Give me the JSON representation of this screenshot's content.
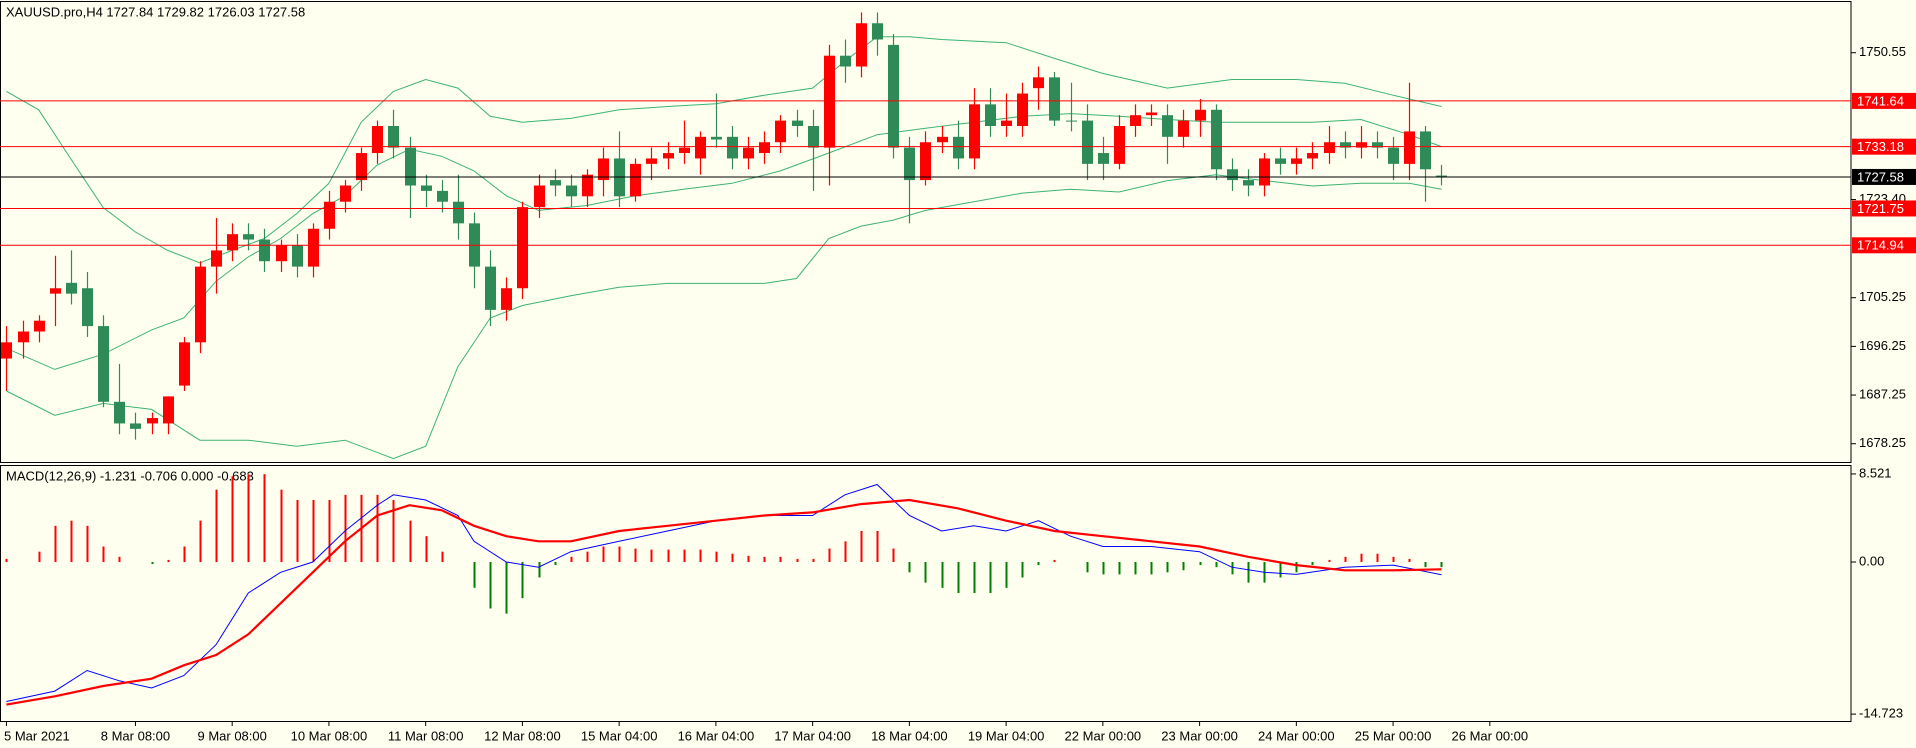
{
  "chart_data": [
    {
      "type": "candlestick",
      "title": "XAUUSD.pro,H4  1727.84 1729.82 1726.03 1727.58",
      "up_color": "#ff0000",
      "down_color": "#2e8b57",
      "candles": [
        [
          1694,
          1700,
          1688,
          1697
        ],
        [
          1697,
          1701,
          1694,
          1699
        ],
        [
          1699,
          1702,
          1697,
          1701
        ],
        [
          1706,
          1713,
          1700,
          1707
        ],
        [
          1708,
          1714,
          1704,
          1706
        ],
        [
          1707,
          1710,
          1698,
          1700
        ],
        [
          1700,
          1702,
          1685,
          1686
        ],
        [
          1686,
          1693,
          1680,
          1682
        ],
        [
          1682,
          1684,
          1679,
          1681
        ],
        [
          1682,
          1684,
          1680,
          1683
        ],
        [
          1682,
          1687,
          1680,
          1687
        ],
        [
          1689,
          1698,
          1688,
          1697
        ],
        [
          1697,
          1712,
          1695,
          1711
        ],
        [
          1711,
          1720,
          1706,
          1714
        ],
        [
          1714,
          1719,
          1712,
          1717
        ],
        [
          1717,
          1719,
          1714,
          1716
        ],
        [
          1716,
          1718,
          1710,
          1712
        ],
        [
          1712,
          1716,
          1710,
          1715
        ],
        [
          1715,
          1717,
          1709,
          1711
        ],
        [
          1711,
          1719,
          1709,
          1718
        ],
        [
          1718,
          1725,
          1716,
          1723
        ],
        [
          1723,
          1727,
          1721,
          1726
        ],
        [
          1727,
          1733,
          1725,
          1732
        ],
        [
          1732,
          1738,
          1730,
          1737
        ],
        [
          1737,
          1740,
          1731,
          1733
        ],
        [
          1733,
          1735,
          1720,
          1726
        ],
        [
          1726,
          1728,
          1722,
          1725
        ],
        [
          1725,
          1727,
          1721,
          1723
        ],
        [
          1723,
          1728,
          1716,
          1719
        ],
        [
          1719,
          1721,
          1707,
          1711
        ],
        [
          1711,
          1714,
          1700,
          1703
        ],
        [
          1703,
          1709,
          1701,
          1707
        ],
        [
          1707,
          1723,
          1705,
          1722
        ],
        [
          1722,
          1728,
          1720,
          1726
        ],
        [
          1727,
          1729,
          1724,
          1726
        ],
        [
          1726,
          1728,
          1722,
          1724
        ],
        [
          1724,
          1729,
          1722,
          1728
        ],
        [
          1727,
          1733,
          1724,
          1731
        ],
        [
          1731,
          1736,
          1722,
          1724
        ],
        [
          1724,
          1731,
          1723,
          1730
        ],
        [
          1730,
          1733,
          1727,
          1731
        ],
        [
          1731,
          1734,
          1729,
          1732
        ],
        [
          1732,
          1738,
          1730,
          1733
        ],
        [
          1731,
          1736,
          1728,
          1735
        ],
        [
          1735,
          1743,
          1733,
          1734.5
        ],
        [
          1735,
          1737,
          1729,
          1731
        ],
        [
          1731,
          1735,
          1729,
          1733
        ],
        [
          1732,
          1736,
          1730,
          1734
        ],
        [
          1734,
          1739,
          1732,
          1738
        ],
        [
          1738,
          1740,
          1735,
          1737
        ],
        [
          1737,
          1740,
          1725,
          1733
        ],
        [
          1733,
          1752,
          1726,
          1750
        ],
        [
          1750,
          1753,
          1745,
          1748
        ],
        [
          1748,
          1758,
          1746,
          1756
        ],
        [
          1756,
          1758,
          1750,
          1753
        ],
        [
          1752,
          1754,
          1731,
          1733
        ],
        [
          1733,
          1735,
          1719,
          1727
        ],
        [
          1727,
          1736,
          1726,
          1734
        ],
        [
          1734,
          1737,
          1732,
          1735
        ],
        [
          1735,
          1738,
          1729,
          1731
        ],
        [
          1731,
          1744,
          1729,
          1741
        ],
        [
          1741,
          1744,
          1735,
          1737
        ],
        [
          1737,
          1743,
          1735,
          1738
        ],
        [
          1737,
          1745,
          1735,
          1743
        ],
        [
          1744,
          1748,
          1740,
          1746
        ],
        [
          1746,
          1747,
          1737,
          1738
        ],
        [
          1738,
          1745,
          1736,
          1738
        ],
        [
          1738,
          1741,
          1727,
          1730
        ],
        [
          1732,
          1735,
          1727,
          1730
        ],
        [
          1730,
          1739,
          1729,
          1737
        ],
        [
          1737,
          1741,
          1735,
          1739
        ],
        [
          1739,
          1741,
          1737,
          1739.5
        ],
        [
          1739,
          1741,
          1730,
          1735
        ],
        [
          1735,
          1740,
          1733,
          1738
        ],
        [
          1738,
          1742,
          1735,
          1740
        ],
        [
          1740,
          1741,
          1727,
          1729
        ],
        [
          1729,
          1731,
          1725,
          1727
        ],
        [
          1727,
          1729,
          1724,
          1726
        ],
        [
          1726,
          1732,
          1724,
          1731
        ],
        [
          1731,
          1733,
          1728,
          1730
        ],
        [
          1730,
          1733,
          1728,
          1731
        ],
        [
          1731,
          1734,
          1729,
          1732
        ],
        [
          1732,
          1737,
          1730,
          1734
        ],
        [
          1734,
          1736,
          1731,
          1733
        ],
        [
          1733,
          1737,
          1731,
          1734
        ],
        [
          1734,
          1736,
          1731,
          1733
        ],
        [
          1733,
          1735,
          1727,
          1730
        ],
        [
          1730,
          1745,
          1727,
          1736
        ],
        [
          1736,
          1737,
          1723,
          1729
        ],
        [
          1727.84,
          1729.82,
          1726.03,
          1727.58
        ]
      ],
      "bands": [
        {
          "color": "#3cb371",
          "x": [
            0,
            2,
            4,
            6,
            8,
            10,
            12,
            14,
            16,
            18,
            20,
            22,
            24,
            26,
            28,
            30,
            32,
            35,
            38,
            41,
            44,
            47,
            50,
            52,
            54,
            56,
            58,
            62,
            65,
            68,
            72,
            76,
            80,
            83,
            86,
            89
          ],
          "values": [
            1743.4,
            1740,
            1730.9,
            1721.9,
            1717.4,
            1714,
            1711.7,
            1714,
            1716.2,
            1720.8,
            1726.4,
            1737.7,
            1743.4,
            1745.6,
            1744,
            1738.8,
            1737.7,
            1738.4,
            1740,
            1740.6,
            1741.1,
            1742.7,
            1744,
            1749,
            1753.5,
            1753.5,
            1753,
            1752.4,
            1749.5,
            1746.7,
            1744,
            1745.6,
            1745.6,
            1744.9,
            1742.7,
            1740.6
          ]
        },
        {
          "color": "#3cb371",
          "x": [
            0,
            3,
            6,
            9,
            11,
            13,
            15,
            17,
            19,
            21,
            23,
            25,
            27,
            29,
            31,
            33,
            36,
            39,
            42,
            45,
            48,
            51,
            54,
            57,
            60,
            63,
            66,
            69,
            72,
            75,
            78,
            81,
            84,
            87,
            89
          ],
          "values": [
            1695.9,
            1692,
            1694.8,
            1699.3,
            1701.5,
            1708.3,
            1712.8,
            1716.2,
            1720.8,
            1724.1,
            1729.8,
            1732.7,
            1731.4,
            1728.7,
            1724.1,
            1721.4,
            1722.3,
            1724.1,
            1725.3,
            1726.4,
            1728.7,
            1732,
            1735.4,
            1736.6,
            1737.7,
            1738.8,
            1739.3,
            1738.8,
            1738.2,
            1737.7,
            1737.7,
            1737.7,
            1738.2,
            1735.4,
            1733.2
          ]
        },
        {
          "color": "#3cb371",
          "x": [
            0,
            3,
            6,
            9,
            12,
            15,
            18,
            21,
            24,
            26,
            28,
            30,
            32,
            35,
            38,
            41,
            44,
            47,
            49,
            51,
            53,
            55,
            57,
            60,
            63,
            66,
            69,
            72,
            75,
            78,
            81,
            84,
            87,
            89
          ],
          "values": [
            1688,
            1683.5,
            1685.7,
            1684.6,
            1678.9,
            1678.9,
            1677.8,
            1678.9,
            1675.5,
            1677.8,
            1692.5,
            1701.5,
            1703.8,
            1705.6,
            1707.2,
            1707.9,
            1707.9,
            1707.9,
            1708.8,
            1716.2,
            1718.5,
            1719.6,
            1721.4,
            1723,
            1724.6,
            1725.3,
            1724.8,
            1726.9,
            1728,
            1726.9,
            1725.9,
            1726.4,
            1726.4,
            1725.3
          ]
        }
      ],
      "levels": [
        1741.64,
        1733.18,
        1721.75,
        1714.94
      ],
      "level_color": "#ff0000",
      "current": 1727.58,
      "current_color": "#000000",
      "xlim": [
        -0.4,
        114.4
      ],
      "ylim": [
        1674.87,
        1759.93
      ],
      "yticks": [
        1750.55,
        {
          "value": 1723.4,
          "label": "1723.40"
        },
        1705.25,
        1696.25,
        1687.25,
        1678.25
      ],
      "xticks": [
        {
          "value": 0,
          "label": "5 Mar 2021"
        },
        {
          "value": 8,
          "label": "8 Mar 08:00"
        },
        {
          "value": 14,
          "label": "9 Mar 08:00"
        },
        {
          "value": 20,
          "label": "10 Mar 08:00"
        },
        {
          "value": 26,
          "label": "11 Mar 08:00"
        },
        {
          "value": 32,
          "label": "12 Mar 08:00"
        },
        {
          "value": 38,
          "label": "15 Mar 04:00"
        },
        {
          "value": 44,
          "label": "16 Mar 04:00"
        },
        {
          "value": 50,
          "label": "17 Mar 04:00"
        },
        {
          "value": 56,
          "label": "18 Mar 04:00"
        },
        {
          "value": 62,
          "label": "19 Mar 04:00"
        },
        {
          "value": 68,
          "label": "22 Mar 00:00"
        },
        {
          "value": 74,
          "label": "23 Mar 00:00"
        },
        {
          "value": 80,
          "label": "24 Mar 00:00"
        },
        {
          "value": 86,
          "label": "25 Mar 00:00"
        },
        {
          "value": 92,
          "label": "26 Mar 00:00"
        }
      ]
    },
    {
      "type": "macd",
      "title": "MACD(12,26,9) -1.231 -0.706 0.000 -0.683",
      "positive_color": "#ff0000",
      "negative_color": "#008000",
      "values": [
        0.3,
        0,
        1,
        3.5,
        4,
        3.5,
        1.5,
        0.5,
        0,
        -0.2,
        0.2,
        1.5,
        4,
        7,
        8.3,
        8.5,
        8.5,
        7,
        6,
        6,
        6,
        6.5,
        6.5,
        6.5,
        6,
        4,
        2.5,
        1,
        0,
        -2.5,
        -4.5,
        -5,
        -3.5,
        -1.5,
        -0.3,
        0.5,
        1,
        1.5,
        1.5,
        1.3,
        1.2,
        1.2,
        1.2,
        1.2,
        1,
        0.8,
        0.6,
        0.5,
        0.5,
        0.3,
        0.3,
        1.3,
        2,
        3,
        3,
        1.3,
        -1,
        -2,
        -2.5,
        -3,
        -3,
        -3,
        -2.5,
        -1.5,
        -0.3,
        0.2,
        0,
        -1,
        -1.2,
        -1.2,
        -1.2,
        -1.2,
        -1,
        -0.8,
        -0.3,
        -0.5,
        -1.2,
        -2,
        -2,
        -1.5,
        -1,
        -0.3,
        0.2,
        0.5,
        0.8,
        0.8,
        0.5,
        0.3,
        -0.5,
        -0.5
      ],
      "lines": [
        {
          "color": "#0000ff",
          "width": 1,
          "x": [
            0,
            3,
            5,
            7,
            9,
            11,
            13,
            15,
            17,
            19,
            21,
            23,
            24,
            26,
            28,
            29,
            31,
            33,
            35,
            38,
            41,
            44,
            47,
            50,
            52,
            54,
            56,
            58,
            60,
            62,
            64,
            66,
            68,
            71,
            74,
            76,
            78,
            80,
            83,
            86,
            89
          ],
          "values": [
            -13.5,
            -12.5,
            -10.5,
            -11.5,
            -12.2,
            -11,
            -8,
            -3,
            -1,
            0,
            3,
            5.5,
            6.5,
            6,
            4.5,
            2,
            0,
            -0.5,
            1,
            2,
            3,
            4,
            4.5,
            4.5,
            6.5,
            7.5,
            4.5,
            3,
            3.5,
            3,
            4,
            2.5,
            1.5,
            1.5,
            1,
            -0.5,
            -1,
            -1.2,
            -0.5,
            -0.3,
            -1.231
          ]
        },
        {
          "color": "#ff0000",
          "width": 2.2,
          "x": [
            0,
            3,
            6,
            9,
            11,
            13,
            15,
            17,
            19,
            21,
            23,
            25,
            27,
            29,
            31,
            33,
            35,
            38,
            41,
            44,
            47,
            50,
            53,
            56,
            59,
            62,
            65,
            68,
            71,
            74,
            77,
            80,
            83,
            86,
            89
          ],
          "values": [
            -13.8,
            -13,
            -12,
            -11.3,
            -10,
            -9,
            -7,
            -4,
            -1,
            2,
            4.5,
            5.5,
            5,
            3.5,
            2.5,
            2,
            2,
            3,
            3.5,
            4,
            4.5,
            4.8,
            5.6,
            6,
            5.2,
            4,
            3,
            2.5,
            2,
            1.5,
            0.5,
            -0.3,
            -0.8,
            -0.8,
            -0.706
          ]
        }
      ],
      "ylim": [
        -15.39,
        9.29
      ],
      "yticks": [
        8.521,
        {
          "value": 0,
          "label": "0.00"
        },
        -14.723
      ]
    }
  ]
}
